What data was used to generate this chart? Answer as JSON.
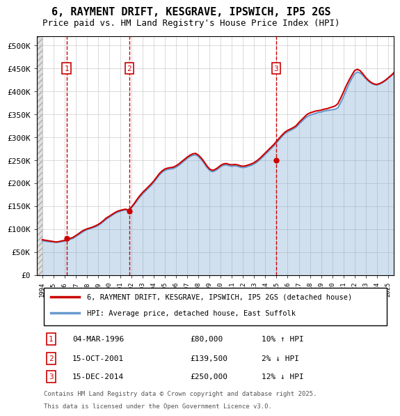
{
  "title": "6, RAYMENT DRIFT, KESGRAVE, IPSWICH, IP5 2GS",
  "subtitle": "Price paid vs. HM Land Registry's House Price Index (HPI)",
  "legend_line1": "6, RAYMENT DRIFT, KESGRAVE, IPSWICH, IP5 2GS (detached house)",
  "legend_line2": "HPI: Average price, detached house, East Suffolk",
  "footer": "Contains HM Land Registry data © Crown copyright and database right 2025.\nThis data is licensed under the Open Government Licence v3.0.",
  "sales": [
    {
      "label": "1",
      "date": "04-MAR-1996",
      "price": 80000,
      "note": "10% ↑ HPI",
      "x_year": 1996.17
    },
    {
      "label": "2",
      "date": "15-OCT-2001",
      "price": 139500,
      "note": "2% ↓ HPI",
      "x_year": 2001.79
    },
    {
      "label": "3",
      "date": "15-DEC-2014",
      "price": 250000,
      "note": "12% ↓ HPI",
      "x_year": 2014.96
    }
  ],
  "hpi_color": "#6699cc",
  "price_color": "#cc0000",
  "sale_marker_color": "#cc0000",
  "dashed_line_color": "#cc0000",
  "annotation_box_color": "#cc0000",
  "ylim": [
    0,
    520000
  ],
  "xlim_start": 1993.5,
  "xlim_end": 2025.5,
  "yticks": [
    0,
    50000,
    100000,
    150000,
    200000,
    250000,
    300000,
    350000,
    400000,
    450000,
    500000
  ],
  "ytick_labels": [
    "£0",
    "£50K",
    "£100K",
    "£150K",
    "£200K",
    "£250K",
    "£300K",
    "£350K",
    "£400K",
    "£450K",
    "£500K"
  ],
  "hpi_years_start": 1994.0,
  "hpi_years_step": 0.25,
  "hpi_values": [
    75000,
    74000,
    73000,
    72500,
    72000,
    71500,
    72000,
    73000,
    74000,
    76000,
    78000,
    80000,
    84000,
    88000,
    92000,
    96000,
    99000,
    101000,
    103000,
    105000,
    108000,
    112000,
    117000,
    122000,
    126000,
    130000,
    134000,
    137000,
    139000,
    141000,
    142000,
    143000,
    147000,
    154000,
    162000,
    170000,
    177000,
    183000,
    189000,
    195000,
    202000,
    210000,
    218000,
    224000,
    228000,
    230000,
    231000,
    232000,
    235000,
    239000,
    244000,
    249000,
    254000,
    258000,
    261000,
    262000,
    258000,
    252000,
    244000,
    235000,
    228000,
    225000,
    227000,
    231000,
    236000,
    239000,
    240000,
    238000,
    237000,
    238000,
    237000,
    235000,
    234000,
    235000,
    237000,
    239000,
    242000,
    246000,
    251000,
    257000,
    263000,
    269000,
    275000,
    281000,
    288000,
    295000,
    302000,
    308000,
    312000,
    315000,
    318000,
    322000,
    328000,
    334000,
    340000,
    345000,
    348000,
    350000,
    352000,
    354000,
    355000,
    357000,
    358000,
    359000,
    360000,
    361000,
    364000,
    375000,
    388000,
    402000,
    416000,
    428000,
    438000,
    442000,
    440000,
    435000,
    428000,
    422000,
    418000,
    415000,
    414000,
    416000,
    419000,
    423000,
    428000,
    433000,
    438000,
    442000,
    445000
  ],
  "pp_values": [
    77000,
    76000,
    75000,
    74000,
    73000,
    72000,
    73000,
    74500,
    75500,
    77500,
    80000,
    82000,
    86000,
    90000,
    94500,
    98000,
    100500,
    102500,
    104500,
    107000,
    110000,
    114000,
    119000,
    124500,
    128000,
    132000,
    136000,
    139000,
    141000,
    142500,
    143500,
    140000,
    148000,
    156000,
    165000,
    173000,
    180000,
    186000,
    192000,
    198000,
    205000,
    213000,
    221000,
    227000,
    231000,
    233000,
    234000,
    235000,
    238000,
    242000,
    247000,
    252000,
    257000,
    261000,
    264000,
    265000,
    261000,
    255000,
    247000,
    238000,
    231000,
    228000,
    230000,
    234000,
    239000,
    242000,
    243000,
    241000,
    240000,
    241000,
    240000,
    238000,
    237000,
    238000,
    240000,
    242000,
    245000,
    249000,
    254000,
    260000,
    266000,
    272000,
    278000,
    284000,
    291000,
    298000,
    305000,
    311000,
    315000,
    318000,
    321000,
    325000,
    332000,
    338000,
    344000,
    350000,
    353000,
    355000,
    357000,
    358000,
    359000,
    361000,
    362000,
    364000,
    366000,
    368000,
    373000,
    385000,
    398000,
    412000,
    424000,
    435000,
    445000,
    448000,
    445000,
    438000,
    430000,
    424000,
    419000,
    416000,
    415000,
    417000,
    420000,
    424000,
    429000,
    434000,
    440000,
    445000,
    448000
  ]
}
